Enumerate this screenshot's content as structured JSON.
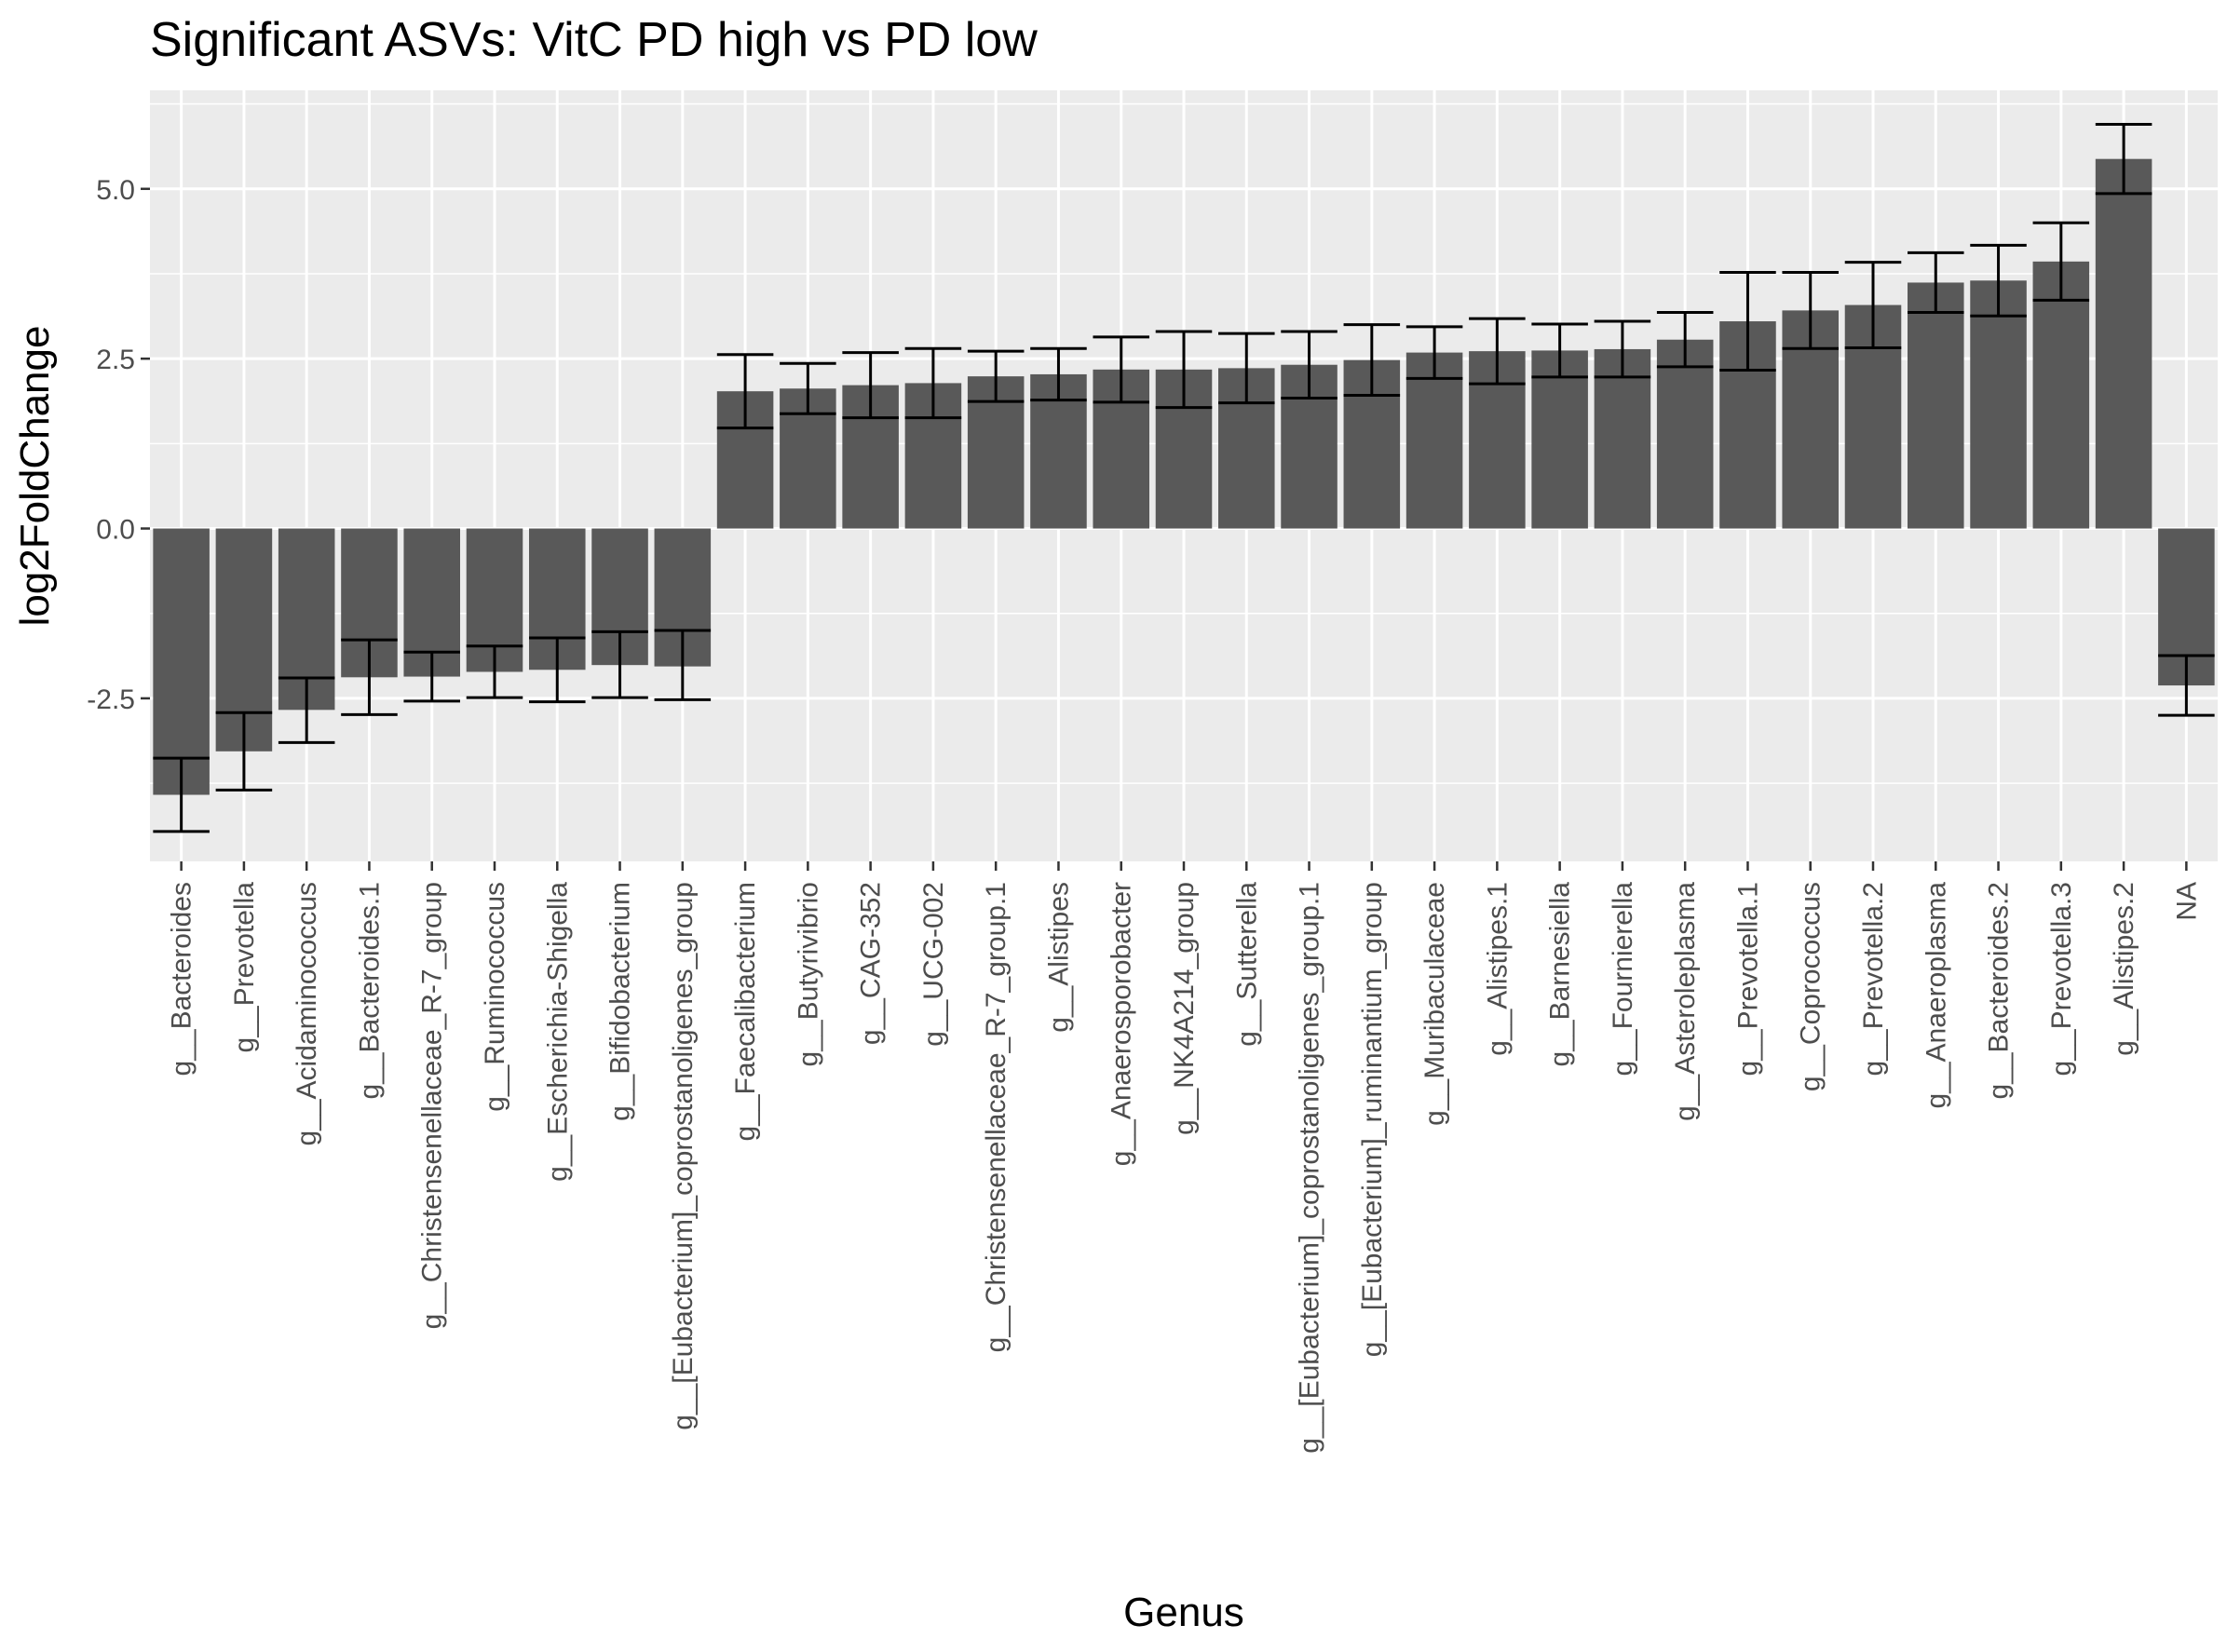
{
  "chart_data": {
    "type": "bar",
    "title": "Significant ASVs: VitC PD high vs PD low",
    "xlabel": "Genus",
    "ylabel": "log2FoldChange",
    "ylim": [
      -4.9,
      6.45
    ],
    "yticks": [
      -2.5,
      0.0,
      2.5,
      5.0
    ],
    "ytick_labels": [
      "-2.5",
      "0.0",
      "2.5",
      "5.0"
    ],
    "grid": true,
    "error_bars": true,
    "categories": [
      "g__Bacteroides",
      "g__Prevotella",
      "g__Acidaminococcus",
      "g__Bacteroides.1",
      "g__Christensenellaceae_R-7_group",
      "g__Ruminococcus",
      "g__Escherichia-Shigella",
      "g__Bifidobacterium",
      "g__[Eubacterium]_coprostanoligenes_group",
      "g__Faecalibacterium",
      "g__Butyrivibrio",
      "g__CAG-352",
      "g__UCG-002",
      "g__Christensenellaceae_R-7_group.1",
      "g__Alistipes",
      "g__Anaerosporobacter",
      "g__NK4A214_group",
      "g__Sutterella",
      "g__[Eubacterium]_coprostanoligenes_group.1",
      "g__[Eubacterium]_ruminantium_group",
      "g__Muribaculaceae",
      "g__Alistipes.1",
      "g__Barnesiella",
      "g__Fournierella",
      "g__Asteroleplasma",
      "g__Prevotella.1",
      "g__Coprococcus",
      "g__Prevotella.2",
      "g__Anaeroplasma",
      "g__Bacteroides.2",
      "g__Prevotella.3",
      "g__Alistipes.2",
      "NA"
    ],
    "values": [
      -3.92,
      -3.28,
      -2.67,
      -2.19,
      -2.18,
      -2.11,
      -2.08,
      -2.01,
      -2.03,
      2.02,
      2.06,
      2.11,
      2.14,
      2.24,
      2.27,
      2.34,
      2.34,
      2.36,
      2.41,
      2.48,
      2.59,
      2.61,
      2.62,
      2.64,
      2.78,
      3.05,
      3.21,
      3.29,
      3.62,
      3.65,
      3.93,
      5.44,
      -2.31
    ],
    "error_low": [
      -4.46,
      -3.85,
      -3.15,
      -2.74,
      -2.54,
      -2.49,
      -2.55,
      -2.49,
      -2.52,
      1.48,
      1.69,
      1.63,
      1.63,
      1.87,
      1.89,
      1.86,
      1.78,
      1.85,
      1.92,
      1.96,
      2.21,
      2.13,
      2.23,
      2.23,
      2.38,
      2.33,
      2.65,
      2.66,
      3.18,
      3.13,
      3.36,
      4.93,
      -2.75
    ],
    "error_high": [
      -3.38,
      -2.71,
      -2.2,
      -1.64,
      -1.82,
      -1.73,
      -1.61,
      -1.52,
      -1.5,
      2.56,
      2.43,
      2.59,
      2.65,
      2.61,
      2.65,
      2.82,
      2.9,
      2.87,
      2.9,
      3.0,
      2.97,
      3.09,
      3.01,
      3.05,
      3.18,
      3.77,
      3.77,
      3.92,
      4.06,
      4.17,
      4.5,
      5.95,
      -1.87
    ],
    "colors": {
      "bar": "#595959",
      "panel": "#ebebeb",
      "grid": "#ffffff",
      "errorbar": "#000000"
    }
  }
}
